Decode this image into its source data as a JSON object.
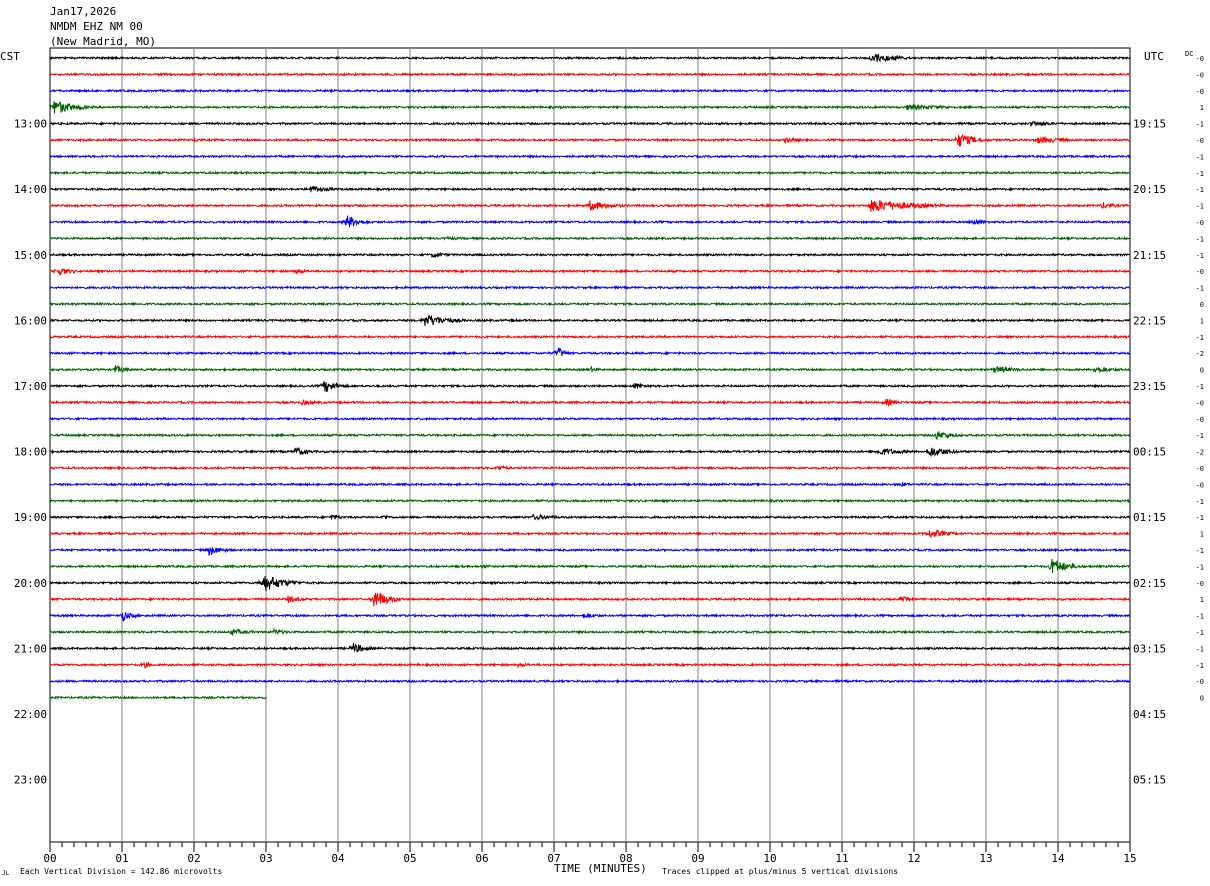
{
  "header": {
    "date": "Jan17,2026",
    "station": "NMDM EHZ NM 00",
    "location": "(New Madrid, MO)"
  },
  "corner": {
    "left_tz": "CST",
    "right_tz": "UTC",
    "dc_label": "DC"
  },
  "footer": {
    "xlabel": "TIME (MINUTES)",
    "scale_note": "Each Vertical Division =  142.86 microvolts",
    "clip_note": "Traces clipped at plus/minus 5 vertical divisions",
    "corner_mark": "JL"
  },
  "chart_data": {
    "type": "line",
    "title": "NMDM EHZ NM 00 (New Madrid, MO) Jan17,2026",
    "xlabel": "TIME (MINUTES)",
    "x_ticks": [
      "00",
      "01",
      "02",
      "03",
      "04",
      "05",
      "06",
      "07",
      "08",
      "09",
      "10",
      "11",
      "12",
      "13",
      "14",
      "15"
    ],
    "xlim": [
      0,
      15
    ],
    "minutes_per_line": 15,
    "num_lines": 44,
    "colors": [
      "#000000",
      "#ff0000",
      "#0000ff",
      "#006400"
    ],
    "left_hour_labels": [
      "13:00",
      "14:00",
      "15:00",
      "16:00",
      "17:00",
      "18:00",
      "19:00",
      "20:00",
      "21:00",
      "22:00",
      "23:00"
    ],
    "right_hour_labels": [
      "19:15",
      "20:15",
      "21:15",
      "22:15",
      "23:15",
      "00:15",
      "01:15",
      "02:15",
      "03:15",
      "04:15",
      "05:15"
    ],
    "dc_offsets": [
      "-0",
      "-0",
      "-0",
      "1",
      "-1",
      "-0",
      "-1",
      "-1",
      "-1",
      "-1",
      "-0",
      "-1",
      "-1",
      "-0",
      "-1",
      "0",
      "1",
      "-1",
      "-2",
      "0",
      "-1",
      "-0",
      "-0",
      "-1",
      "-2",
      "-0",
      "-0",
      "-1",
      "-1",
      "1",
      "-1",
      "-1",
      "-0",
      "1",
      "-1",
      "-1",
      "-1",
      "-1",
      "-0",
      "0"
    ],
    "partial_last_line_minutes": 3.0,
    "events": [
      {
        "line": 0,
        "minute": 11.4,
        "amp": 5,
        "dur": 0.8
      },
      {
        "line": 1,
        "minute": 1.5,
        "amp": 2,
        "dur": 0.5
      },
      {
        "line": 3,
        "minute": 0.05,
        "amp": 8,
        "dur": 0.6
      },
      {
        "line": 3,
        "minute": 0.4,
        "amp": 3,
        "dur": 0.4
      },
      {
        "line": 3,
        "minute": 11.9,
        "amp": 3,
        "dur": 1.5
      },
      {
        "line": 4,
        "minute": 13.6,
        "amp": 3,
        "dur": 0.8
      },
      {
        "line": 5,
        "minute": 2.0,
        "amp": 2,
        "dur": 0.4
      },
      {
        "line": 5,
        "minute": 10.2,
        "amp": 3,
        "dur": 0.5
      },
      {
        "line": 5,
        "minute": 12.6,
        "amp": 8,
        "dur": 0.5
      },
      {
        "line": 5,
        "minute": 13.7,
        "amp": 4,
        "dur": 0.8
      },
      {
        "line": 8,
        "minute": 3.6,
        "amp": 4,
        "dur": 0.6
      },
      {
        "line": 9,
        "minute": 7.5,
        "amp": 5,
        "dur": 0.7
      },
      {
        "line": 9,
        "minute": 11.4,
        "amp": 7,
        "dur": 1.3
      },
      {
        "line": 9,
        "minute": 14.6,
        "amp": 4,
        "dur": 0.4
      },
      {
        "line": 10,
        "minute": 4.1,
        "amp": 8,
        "dur": 0.4
      },
      {
        "line": 10,
        "minute": 12.8,
        "amp": 4,
        "dur": 0.4
      },
      {
        "line": 11,
        "minute": 5.5,
        "amp": 2,
        "dur": 0.5
      },
      {
        "line": 12,
        "minute": 5.3,
        "amp": 3,
        "dur": 0.5
      },
      {
        "line": 13,
        "minute": 0.1,
        "amp": 5,
        "dur": 0.4
      },
      {
        "line": 13,
        "minute": 3.4,
        "amp": 3,
        "dur": 0.4
      },
      {
        "line": 16,
        "minute": 5.2,
        "amp": 7,
        "dur": 0.7
      },
      {
        "line": 16,
        "minute": 6.4,
        "amp": 2,
        "dur": 0.3
      },
      {
        "line": 18,
        "minute": 7.05,
        "amp": 7,
        "dur": 0.2
      },
      {
        "line": 19,
        "minute": 0.9,
        "amp": 5,
        "dur": 0.3
      },
      {
        "line": 19,
        "minute": 7.5,
        "amp": 3,
        "dur": 0.3
      },
      {
        "line": 19,
        "minute": 13.1,
        "amp": 4,
        "dur": 0.7
      },
      {
        "line": 19,
        "minute": 14.5,
        "amp": 4,
        "dur": 0.6
      },
      {
        "line": 20,
        "minute": 3.8,
        "amp": 7,
        "dur": 0.4
      },
      {
        "line": 20,
        "minute": 8.1,
        "amp": 4,
        "dur": 0.4
      },
      {
        "line": 21,
        "minute": 3.5,
        "amp": 3,
        "dur": 0.4
      },
      {
        "line": 21,
        "minute": 11.6,
        "amp": 4,
        "dur": 0.4
      },
      {
        "line": 23,
        "minute": 12.3,
        "amp": 5,
        "dur": 0.5
      },
      {
        "line": 24,
        "minute": 3.4,
        "amp": 5,
        "dur": 0.4
      },
      {
        "line": 24,
        "minute": 11.5,
        "amp": 4,
        "dur": 0.8
      },
      {
        "line": 24,
        "minute": 12.2,
        "amp": 6,
        "dur": 0.6
      },
      {
        "line": 25,
        "minute": 6.2,
        "amp": 3,
        "dur": 0.4
      },
      {
        "line": 26,
        "minute": 11.8,
        "amp": 3,
        "dur": 0.3
      },
      {
        "line": 28,
        "minute": 3.9,
        "amp": 3,
        "dur": 0.4
      },
      {
        "line": 28,
        "minute": 4.6,
        "amp": 3,
        "dur": 0.3
      },
      {
        "line": 28,
        "minute": 6.7,
        "amp": 3,
        "dur": 0.8
      },
      {
        "line": 29,
        "minute": 12.2,
        "amp": 5,
        "dur": 0.6
      },
      {
        "line": 30,
        "minute": 2.2,
        "amp": 6,
        "dur": 0.4
      },
      {
        "line": 31,
        "minute": 6.0,
        "amp": 2,
        "dur": 0.4
      },
      {
        "line": 31,
        "minute": 13.9,
        "amp": 9,
        "dur": 0.5
      },
      {
        "line": 32,
        "minute": 2.95,
        "amp": 10,
        "dur": 0.6
      },
      {
        "line": 33,
        "minute": 3.3,
        "amp": 4,
        "dur": 0.4
      },
      {
        "line": 33,
        "minute": 4.5,
        "amp": 11,
        "dur": 0.4
      },
      {
        "line": 33,
        "minute": 11.8,
        "amp": 3,
        "dur": 0.4
      },
      {
        "line": 34,
        "minute": 1.0,
        "amp": 6,
        "dur": 0.3
      },
      {
        "line": 34,
        "minute": 7.4,
        "amp": 3,
        "dur": 0.5
      },
      {
        "line": 35,
        "minute": 2.5,
        "amp": 3,
        "dur": 0.8
      },
      {
        "line": 35,
        "minute": 3.1,
        "amp": 3,
        "dur": 0.5
      },
      {
        "line": 36,
        "minute": 4.2,
        "amp": 6,
        "dur": 0.4
      },
      {
        "line": 37,
        "minute": 1.3,
        "amp": 4,
        "dur": 0.2
      },
      {
        "line": 37,
        "minute": 6.5,
        "amp": 2,
        "dur": 0.5
      }
    ]
  }
}
